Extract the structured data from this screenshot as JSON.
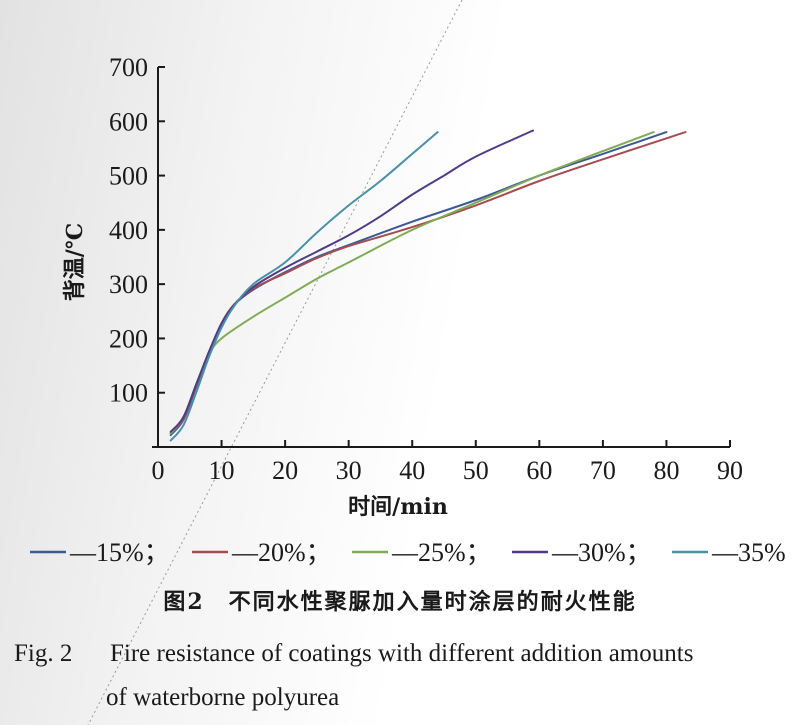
{
  "chart_data": {
    "type": "line",
    "xlabel": "时间/min",
    "ylabel": "背温/℃",
    "xlim": [
      0,
      90
    ],
    "ylim": [
      0,
      700
    ],
    "xticks": [
      0,
      10,
      20,
      30,
      40,
      50,
      60,
      70,
      80,
      90
    ],
    "yticks": [
      100,
      200,
      300,
      400,
      500,
      600,
      700
    ],
    "grid": false,
    "legend_position": "bottom",
    "series": [
      {
        "name": "15%",
        "label": "—15%；",
        "color": "#3d5a96",
        "x": [
          2,
          4,
          6,
          8,
          10,
          12,
          15,
          20,
          25,
          30,
          40,
          50,
          60,
          70,
          80
        ],
        "y": [
          22,
          50,
          110,
          170,
          225,
          262,
          290,
          322,
          350,
          372,
          415,
          455,
          500,
          540,
          580
        ]
      },
      {
        "name": "20%",
        "label": "—20%；",
        "color": "#a54b52",
        "x": [
          2,
          4,
          6,
          8,
          10,
          12,
          15,
          20,
          25,
          30,
          40,
          50,
          60,
          70,
          83
        ],
        "y": [
          25,
          52,
          112,
          172,
          228,
          263,
          292,
          320,
          348,
          370,
          405,
          445,
          490,
          530,
          580
        ]
      },
      {
        "name": "25%",
        "label": "—25%；",
        "color": "#7fab55",
        "x": [
          2,
          4,
          6,
          8,
          10,
          15,
          20,
          25,
          30,
          40,
          50,
          60,
          70,
          78
        ],
        "y": [
          25,
          55,
          115,
          170,
          200,
          240,
          275,
          310,
          340,
          400,
          450,
          500,
          545,
          580
        ]
      },
      {
        "name": "30%",
        "label": "—30%；",
        "color": "#4e3c86",
        "x": [
          2,
          4,
          6,
          8,
          10,
          12,
          15,
          20,
          25,
          30,
          35,
          40,
          45,
          50,
          59
        ],
        "y": [
          28,
          55,
          115,
          175,
          228,
          262,
          295,
          330,
          360,
          390,
          425,
          465,
          500,
          535,
          583
        ]
      },
      {
        "name": "35%",
        "label": "—35%",
        "color": "#4a8fa8",
        "x": [
          2,
          4,
          6,
          8,
          10,
          12,
          15,
          20,
          25,
          30,
          35,
          40,
          44
        ],
        "y": [
          12,
          40,
          100,
          165,
          220,
          260,
          300,
          340,
          395,
          445,
          490,
          540,
          580
        ]
      }
    ]
  },
  "caption": {
    "cn": "图2　不同水性聚脲加入量时涂层的耐火性能",
    "en_label": "Fig. 2",
    "en_line1": "Fire resistance of coatings with different addition amounts",
    "en_line2": "of waterborne polyurea"
  }
}
